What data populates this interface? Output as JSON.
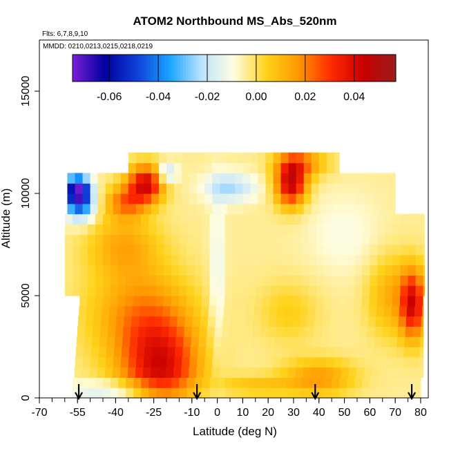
{
  "chart_data": {
    "type": "heatmap",
    "title": "ATOM2 Northbound MS_Abs_520nm",
    "flights_note": "Flts: 6,7,8,9,10",
    "dates_note": "MMDD: 0210,0213,0215,0218,0219",
    "xlabel": "Latitude (deg N)",
    "ylabel": "Altitude (m)",
    "xlim": [
      -70,
      83
    ],
    "ylim": [
      0,
      17500
    ],
    "xticks": [
      -70,
      -55,
      -40,
      -25,
      -10,
      0,
      10,
      20,
      30,
      40,
      50,
      60,
      70,
      80
    ],
    "xtick_labels": [
      "-70",
      "-55",
      "-40",
      "-25",
      "-10",
      "0",
      "10",
      "20",
      "30",
      "40",
      "50",
      "60",
      "70",
      "80"
    ],
    "xtick_minor_step": 5,
    "yticks": [
      0,
      5000,
      10000,
      15000
    ],
    "ytick_labels": [
      "0",
      "5000",
      "10000",
      "15000"
    ],
    "colorbar": {
      "min": -0.075,
      "max": 0.057,
      "ticks": [
        -0.06,
        -0.04,
        -0.02,
        0.0,
        0.02,
        0.04
      ],
      "tick_labels": [
        "-0.06",
        "-0.04",
        "-0.02",
        "0.00",
        "0.02",
        "0.04"
      ],
      "colors": [
        "#7a1fd6",
        "#00009e",
        "#1040d8",
        "#19a2ff",
        "#bfe4ff",
        "#fffde0",
        "#ffd21a",
        "#ff9600",
        "#ff2a00",
        "#c80000",
        "#9c1d1d"
      ]
    },
    "arrows_latitude": [
      -54.5,
      -8,
      38.5,
      76.5
    ],
    "hotspots": [
      {
        "lat": -22,
        "alt": 1300,
        "value": 0.04,
        "rlat": 15,
        "ralt": 2400
      },
      {
        "lat": -30,
        "alt": 4000,
        "value": 0.022,
        "rlat": 20,
        "ralt": 2500
      },
      {
        "lat": -37,
        "alt": 7500,
        "value": 0.016,
        "rlat": 14,
        "ralt": 1500
      },
      {
        "lat": -28,
        "alt": 10500,
        "value": 0.045,
        "rlat": 7,
        "ralt": 900
      },
      {
        "lat": -36,
        "alt": 9600,
        "value": 0.025,
        "rlat": 8,
        "ralt": 800
      },
      {
        "lat": 29,
        "alt": 10500,
        "value": 0.048,
        "rlat": 6,
        "ralt": 1100
      },
      {
        "lat": 33,
        "alt": 11500,
        "value": 0.022,
        "rlat": 10,
        "ralt": 700
      },
      {
        "lat": 77,
        "alt": 4600,
        "value": 0.042,
        "rlat": 5,
        "ralt": 1700
      },
      {
        "lat": 68,
        "alt": 5000,
        "value": 0.016,
        "rlat": 9,
        "ralt": 2000
      },
      {
        "lat": 40,
        "alt": 1000,
        "value": 0.02,
        "rlat": 14,
        "ralt": 900
      },
      {
        "lat": 15,
        "alt": 600,
        "value": 0.012,
        "rlat": 15,
        "ralt": 500
      },
      {
        "lat": 28,
        "alt": 4200,
        "value": 0.009,
        "rlat": 12,
        "ralt": 1500
      },
      {
        "lat": 5,
        "alt": 10300,
        "value": -0.02,
        "rlat": 10,
        "ralt": 700
      },
      {
        "lat": -55,
        "alt": 10200,
        "value": -0.06,
        "rlat": 5,
        "ralt": 700
      },
      {
        "lat": -54,
        "alt": 9400,
        "value": -0.032,
        "rlat": 6,
        "ralt": 800
      },
      {
        "lat": -20,
        "alt": 11000,
        "value": -0.022,
        "rlat": 4,
        "ralt": 500
      },
      {
        "lat": -35,
        "alt": 400,
        "value": -0.018,
        "rlat": 26,
        "ralt": 420
      },
      {
        "lat": 0,
        "alt": 6000,
        "value": -0.01,
        "rlat": 3,
        "ralt": 4000
      },
      {
        "lat": 50,
        "alt": 8000,
        "value": -0.006,
        "rlat": 15,
        "ralt": 2000
      }
    ]
  }
}
